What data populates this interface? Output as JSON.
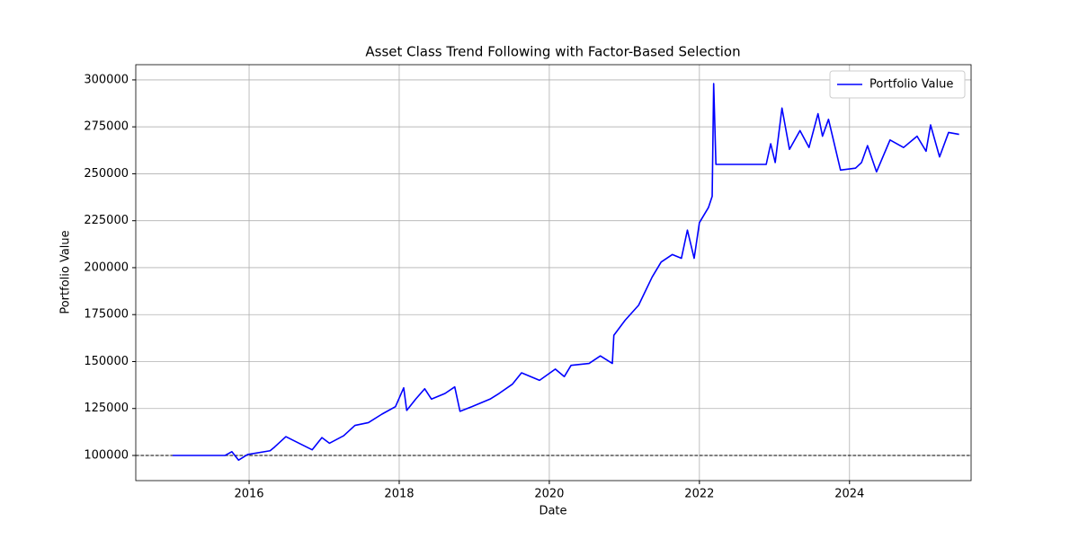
{
  "chart_data": {
    "type": "line",
    "title": "Asset Class Trend Following with Factor-Based Selection",
    "xlabel": "Date",
    "ylabel": "Portfolio Value",
    "x": [
      2014.98,
      2015.68,
      2015.77,
      2015.86,
      2015.98,
      2016.28,
      2016.34,
      2016.49,
      2016.69,
      2016.84,
      2016.97,
      2017.07,
      2017.26,
      2017.41,
      2017.59,
      2017.77,
      2017.95,
      2018.06,
      2018.1,
      2018.22,
      2018.34,
      2018.43,
      2018.61,
      2018.74,
      2018.81,
      2018.97,
      2019.21,
      2019.33,
      2019.51,
      2019.63,
      2019.87,
      2020.08,
      2020.2,
      2020.29,
      2020.53,
      2020.68,
      2020.84,
      2020.86,
      2021.01,
      2021.19,
      2021.37,
      2021.49,
      2021.64,
      2021.76,
      2021.84,
      2021.93,
      2022.0,
      2022.12,
      2022.17,
      2022.19,
      2022.22,
      2022.89,
      2022.95,
      2023.01,
      2023.1,
      2023.2,
      2023.34,
      2023.46,
      2023.58,
      2023.64,
      2023.72,
      2023.88,
      2024.08,
      2024.16,
      2024.24,
      2024.36,
      2024.54,
      2024.72,
      2024.9,
      2025.02,
      2025.08,
      2025.2,
      2025.32,
      2025.46
    ],
    "series": [
      {
        "name": "Portfolio Value",
        "color": "#0000ff",
        "values": [
          100000,
          100000,
          102000,
          97500,
          100500,
          102500,
          104500,
          110000,
          106000,
          103000,
          109500,
          106500,
          110500,
          116000,
          117500,
          122000,
          126000,
          136000,
          124000,
          130000,
          135500,
          130000,
          133000,
          136500,
          123500,
          126000,
          130000,
          133000,
          138000,
          144000,
          140000,
          146000,
          142000,
          148000,
          149000,
          153000,
          149000,
          164000,
          172000,
          180000,
          195000,
          203000,
          207000,
          205000,
          220000,
          205000,
          224000,
          232000,
          238000,
          298000,
          255000,
          255000,
          266000,
          256000,
          285000,
          263000,
          273000,
          264000,
          282000,
          270000,
          279000,
          252000,
          253000,
          256000,
          265000,
          251000,
          268000,
          264000,
          270000,
          262000,
          276000,
          259000,
          272000,
          271000
        ]
      }
    ],
    "reference_line": {
      "value": 100000,
      "color": "#000000",
      "style": "dashed"
    },
    "xlim": [
      2014.49,
      2025.62
    ],
    "xticks": [
      2016,
      2018,
      2020,
      2022,
      2024
    ],
    "ylim": [
      86600,
      308100
    ],
    "yticks": [
      100000,
      125000,
      150000,
      175000,
      200000,
      225000,
      250000,
      275000,
      300000
    ],
    "grid": true,
    "legend": "upper right"
  }
}
